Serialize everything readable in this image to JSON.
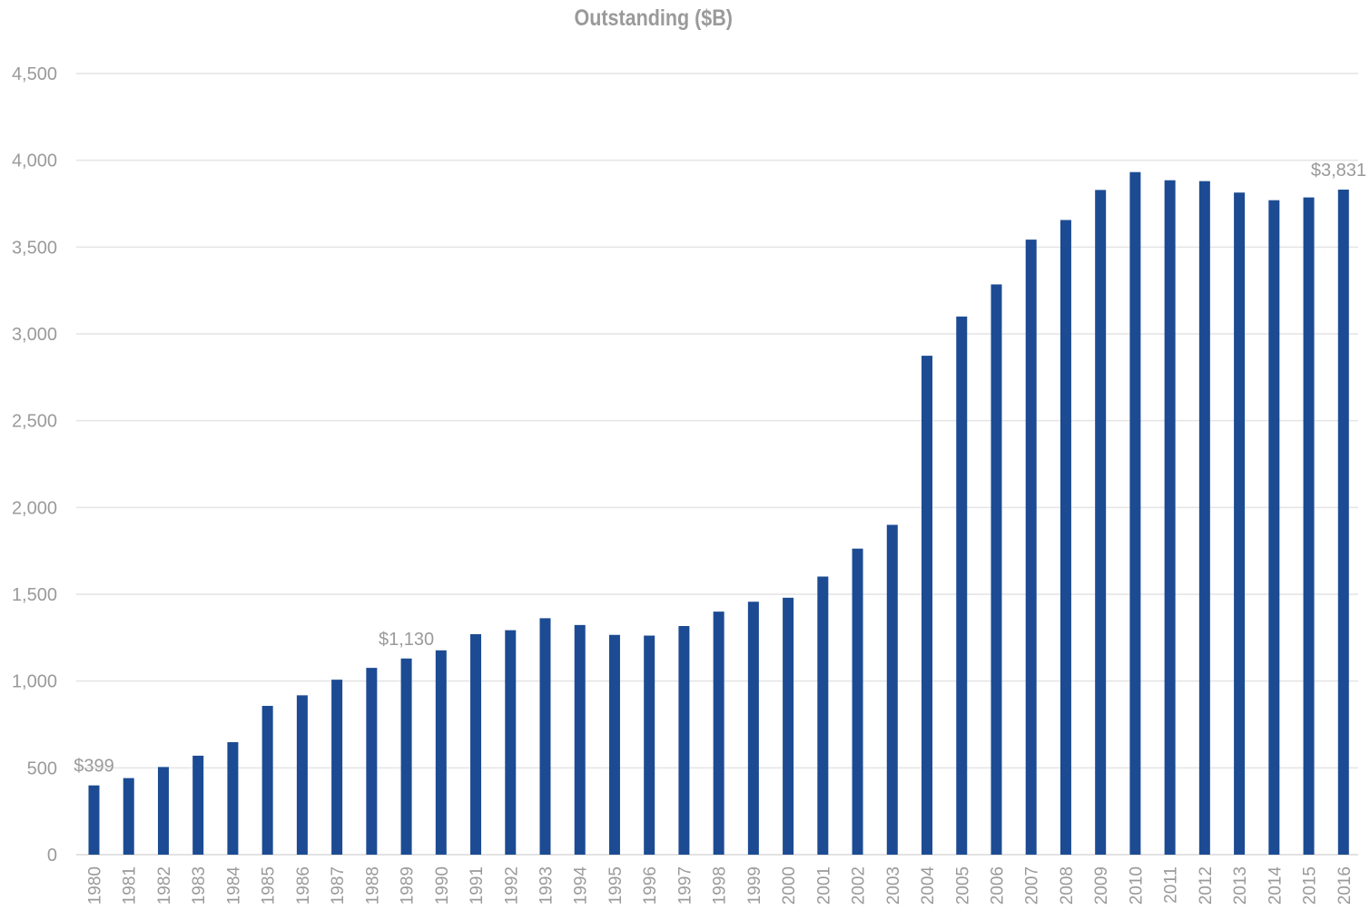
{
  "chart_data": {
    "type": "bar",
    "title": "Outstanding ($B)",
    "xlabel": "",
    "ylabel": "",
    "ylim": [
      0,
      4500
    ],
    "yticks": [
      "0",
      "500",
      "1,000",
      "1,500",
      "2,000",
      "2,500",
      "3,000",
      "3,500",
      "4,000",
      "4,500"
    ],
    "grid": true,
    "legend": "none",
    "bar_color": "#1c4b93",
    "categories": [
      "1980",
      "1981",
      "1982",
      "1983",
      "1984",
      "1985",
      "1986",
      "1987",
      "1988",
      "1989",
      "1990",
      "1991",
      "1992",
      "1993",
      "1994",
      "1995",
      "1996",
      "1997",
      "1998",
      "1999",
      "2000",
      "2001",
      "2002",
      "2003",
      "2004",
      "2005",
      "2006",
      "2007",
      "2008",
      "2009",
      "2010",
      "2011",
      "2012",
      "2013",
      "2014",
      "2015",
      "2016"
    ],
    "values": [
      399,
      441,
      505,
      570,
      648,
      857,
      918,
      1008,
      1076,
      1130,
      1177,
      1270,
      1293,
      1362,
      1323,
      1266,
      1262,
      1317,
      1400,
      1457,
      1480,
      1602,
      1763,
      1900,
      2874,
      3100,
      3285,
      3543,
      3656,
      3829,
      3932,
      3885,
      3880,
      3814,
      3770,
      3786,
      3831
    ],
    "data_labels": [
      {
        "category": "1980",
        "text": "$399"
      },
      {
        "category": "1989",
        "text": "$1,130"
      },
      {
        "category": "2016",
        "text": "$3,831"
      }
    ]
  }
}
